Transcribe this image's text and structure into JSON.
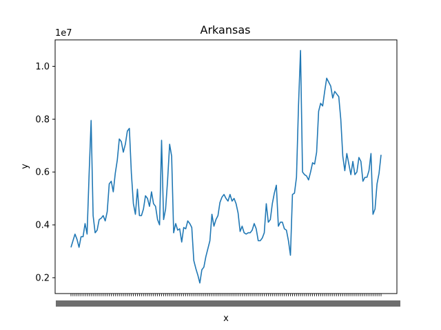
{
  "chart_data": {
    "type": "line",
    "title": "Arkansas",
    "xlabel": "x",
    "ylabel": "y",
    "y_scale_label": "1e7",
    "ylim": [
      1400000,
      10999999
    ],
    "yticks": [
      2000000,
      4000000,
      6000000,
      8000000,
      10000000
    ],
    "ytick_labels": [
      "0.2",
      "0.4",
      "0.6",
      "0.8",
      "1.0"
    ],
    "xtick_labels_note": "dense overlapping category labels (illegible)",
    "grid": false,
    "series": [
      {
        "color": "#1f77b4",
        "values": [
          3150000,
          3400000,
          3650000,
          3450000,
          3150000,
          3550000,
          3550000,
          4050000,
          3650000,
          5900000,
          7950000,
          4350000,
          3700000,
          3800000,
          4200000,
          4250000,
          4350000,
          4150000,
          4500000,
          5550000,
          5650000,
          5250000,
          5950000,
          6450000,
          7250000,
          7150000,
          6750000,
          7050000,
          7550000,
          7650000,
          5950000,
          4800000,
          4400000,
          5350000,
          4350000,
          4350000,
          4600000,
          5100000,
          5000000,
          4700000,
          5250000,
          4800000,
          4700000,
          4200000,
          4000000,
          7200000,
          4200000,
          4600000,
          5700000,
          7050000,
          6600000,
          3700000,
          4050000,
          3800000,
          3850000,
          3350000,
          3900000,
          3850000,
          4150000,
          4050000,
          3900000,
          2650000,
          2350000,
          2100000,
          1800000,
          2300000,
          2400000,
          2800000,
          3100000,
          3400000,
          4400000,
          3950000,
          4200000,
          4350000,
          4850000,
          5050000,
          5150000,
          5000000,
          4900000,
          5150000,
          4900000,
          5000000,
          4800000,
          4450000,
          3750000,
          3950000,
          3700000,
          3650000,
          3700000,
          3700000,
          3800000,
          4050000,
          3850000,
          3400000,
          3400000,
          3500000,
          3700000,
          4800000,
          4100000,
          4200000,
          4800000,
          5200000,
          5500000,
          3950000,
          4100000,
          4100000,
          3850000,
          3800000,
          3400000,
          2850000,
          5150000,
          5200000,
          5800000,
          8500000,
          10600000,
          6000000,
          5900000,
          5850000,
          5700000,
          6000000,
          6350000,
          6300000,
          6750000,
          8300000,
          8600000,
          8500000,
          9050000,
          9550000,
          9400000,
          9250000,
          8800000,
          9050000,
          8950000,
          8850000,
          8000000,
          6600000,
          6050000,
          6700000,
          6300000,
          5900000,
          6400000,
          5900000,
          6000000,
          6550000,
          6400000,
          5650000,
          5800000,
          5800000,
          6050000,
          6700000,
          4400000,
          4600000,
          5550000,
          5950000,
          6650000
        ]
      }
    ]
  }
}
